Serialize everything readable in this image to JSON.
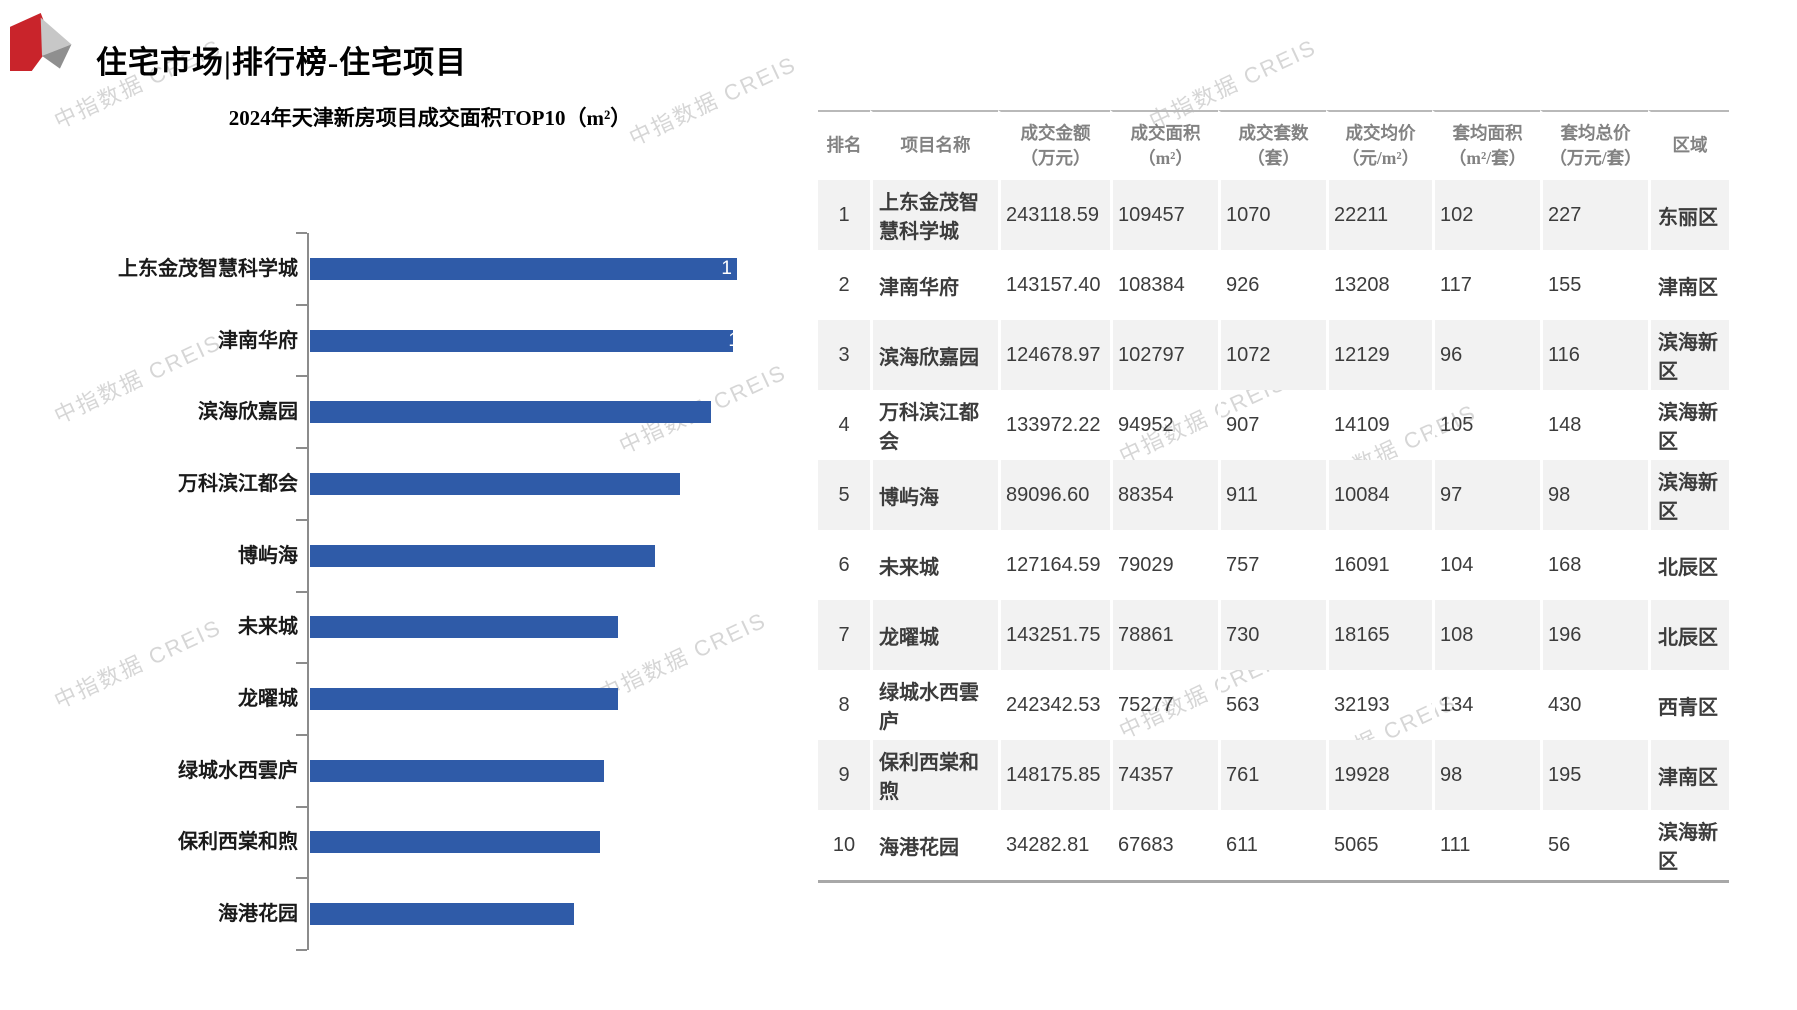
{
  "page": {
    "title": "住宅市场|排行榜-住宅项目"
  },
  "watermark": {
    "text": "中指数据 CREIS"
  },
  "chart_data": {
    "type": "bar",
    "orientation": "horizontal",
    "title": "2024年天津新房项目成交面积TOP10（m²）",
    "categories": [
      "上东金茂智慧科学城",
      "津南华府",
      "滨海欣嘉园",
      "万科滨江都会",
      "博屿海",
      "未来城",
      "龙曜城",
      "绿城水西雲庐",
      "保利西棠和煦",
      "海港花园"
    ],
    "values": [
      109457,
      108384,
      102797,
      94952,
      88354,
      79029,
      78861,
      75277,
      74357,
      67683
    ],
    "bar_value_labels": [
      "1",
      "1",
      "",
      "",
      "",
      "",
      "",
      "",
      "",
      ""
    ],
    "xlim": [
      0,
      115000
    ],
    "grid": false,
    "legend": "none",
    "bar_color": "#2f5ba8",
    "axis_color": "#8c8c8c"
  },
  "table": {
    "columns": [
      {
        "title": "排名",
        "unit": ""
      },
      {
        "title": "项目名称",
        "unit": ""
      },
      {
        "title": "成交金额",
        "unit": "（万元）"
      },
      {
        "title": "成交面积",
        "unit": "（m²）"
      },
      {
        "title": "成交套数",
        "unit": "（套）"
      },
      {
        "title": "成交均价",
        "unit": "（元/m²）"
      },
      {
        "title": "套均面积",
        "unit": "（m²/套）"
      },
      {
        "title": "套均总价",
        "unit": "（万元/套）"
      },
      {
        "title": "区域",
        "unit": ""
      }
    ],
    "rows": [
      [
        "1",
        "上东金茂智慧科学城",
        "243118.59",
        "109457",
        "1070",
        "22211",
        "102",
        "227",
        "东丽区"
      ],
      [
        "2",
        "津南华府",
        "143157.40",
        "108384",
        "926",
        "13208",
        "117",
        "155",
        "津南区"
      ],
      [
        "3",
        "滨海欣嘉园",
        "124678.97",
        "102797",
        "1072",
        "12129",
        "96",
        "116",
        "滨海新区"
      ],
      [
        "4",
        "万科滨江都会",
        "133972.22",
        "94952",
        "907",
        "14109",
        "105",
        "148",
        "滨海新区"
      ],
      [
        "5",
        "博屿海",
        "89096.60",
        "88354",
        "911",
        "10084",
        "97",
        "98",
        "滨海新区"
      ],
      [
        "6",
        "未来城",
        "127164.59",
        "79029",
        "757",
        "16091",
        "104",
        "168",
        "北辰区"
      ],
      [
        "7",
        "龙曜城",
        "143251.75",
        "78861",
        "730",
        "18165",
        "108",
        "196",
        "北辰区"
      ],
      [
        "8",
        "绿城水西雲庐",
        "242342.53",
        "75277",
        "563",
        "32193",
        "134",
        "430",
        "西青区"
      ],
      [
        "9",
        "保利西棠和煦",
        "148175.85",
        "74357",
        "761",
        "19928",
        "98",
        "195",
        "津南区"
      ],
      [
        "10",
        "海港花园",
        "34282.81",
        "67683",
        "611",
        "5065",
        "111",
        "56",
        "滨海新区"
      ]
    ]
  }
}
